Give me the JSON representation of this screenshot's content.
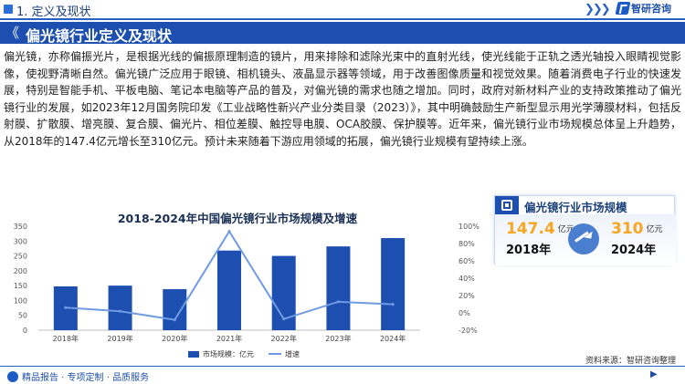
{
  "header": {
    "section_label": "1. 定义及现状",
    "chevrons": "❯❯❯",
    "logo_text": "智研咨询"
  },
  "title": {
    "arrow": "《",
    "text": "偏光镜行业定义及现状"
  },
  "body_text": "偏光镜，亦称偏振光片，是根据光线的偏振原理制造的镜片，用来排除和滤除光束中的直射光线，使光线能于正轨之透光轴投入眼睛视觉影像，使视野清晰自然。偏光镜广泛应用于眼镜、相机镜头、液晶显示器等领域，用于改善图像质量和视觉效果。随着消费电子行业的快速发展，特别是智能手机、平板电脑、笔记本电脑等产品的普及，对偏光镜的需求也随之增加。同时，政府对新材料产业的支持政策推动了偏光镜行业的发展，如2023年12月国务院印发《工业战略性新兴产业分类目录（2023）》，其中明确鼓励生产新型显示用光学薄膜材料，包括反射膜、扩散膜、增亮膜、复合膜、偏光片、相位差膜、触控导电膜、OCA胶膜、保护膜等。近年来，偏光镜行业市场规模总体呈上升趋势，从2018年的147.4亿元增长至310亿元。预计未来随着下游应用领域的拓展，偏光镜行业规模有望持续上涨。",
  "chart_data": {
    "type": "bar",
    "title": "2018-2024年中国偏光镜行业市场规模及增速",
    "categories": [
      "2018年",
      "2019年",
      "2020年",
      "2021年",
      "2022年",
      "2023年",
      "2024年"
    ],
    "series": [
      {
        "name": "市场规模：亿元",
        "type": "bar",
        "axis": "left",
        "color": "#1c4fb0",
        "values": [
          147.4,
          150,
          138,
          268,
          250,
          282,
          310
        ]
      },
      {
        "name": "增速",
        "type": "line",
        "axis": "right",
        "color": "#6f9be0",
        "values": [
          6,
          1.8,
          -8,
          94,
          -7,
          12.8,
          9.9
        ]
      }
    ],
    "yleft": {
      "ticks": [
        "0",
        "50",
        "100",
        "150",
        "200",
        "250",
        "300",
        "350"
      ],
      "min": 0,
      "max": 350
    },
    "yright": {
      "ticks": [
        "-20%",
        "0%",
        "20%",
        "40%",
        "60%",
        "80%",
        "100%"
      ],
      "min": -20,
      "max": 100
    },
    "legend_position": "bottom",
    "grid": false
  },
  "side_card": {
    "title": "偏光镜行业市场规模",
    "left_value": "147.4",
    "left_unit": "亿元",
    "left_year": "2018年",
    "right_value": "310",
    "right_unit": "亿元",
    "right_year": "2024年"
  },
  "footer": {
    "source": "资料来源：智研咨询整理",
    "slogan": "精品报告 · 专项定制 · 品质服务",
    "page_mark": "▶"
  }
}
